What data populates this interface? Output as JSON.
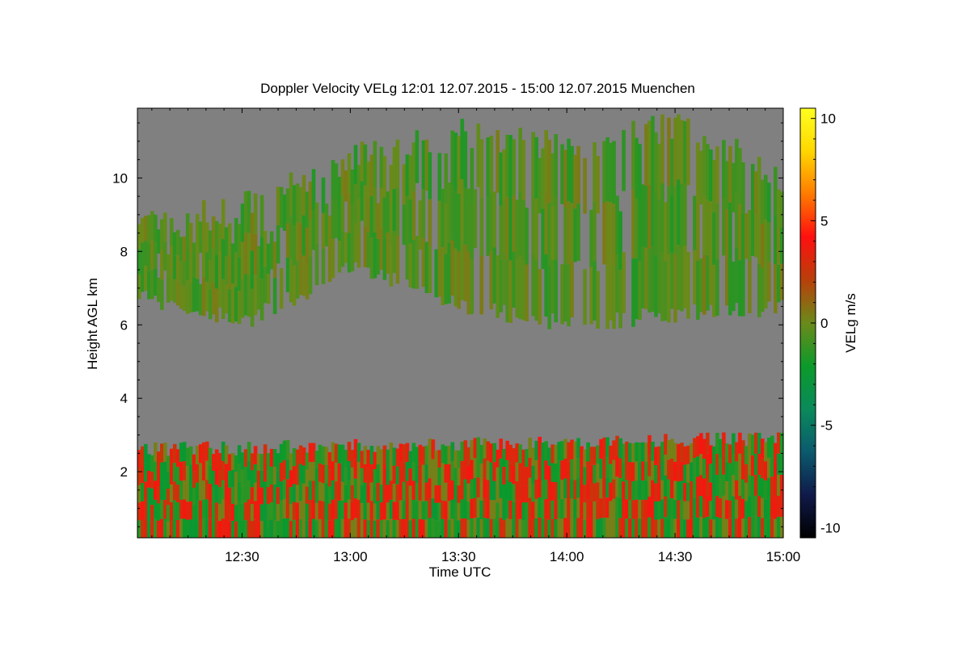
{
  "chart_data": {
    "type": "heatmap",
    "title": "Doppler Velocity VELg   12:01 12.07.2015 - 15:00 12.07.2015 Muenchen",
    "xlabel": "Time UTC",
    "ylabel": "Height AGL km",
    "colorbar_label": "VELg m/s",
    "x_tick_labels": [
      "12:30",
      "13:00",
      "13:30",
      "14:00",
      "14:30",
      "15:00"
    ],
    "x_tick_minutes": [
      30,
      60,
      90,
      120,
      150,
      180
    ],
    "xlim_minutes_after_12": [
      1,
      180
    ],
    "y_ticks": [
      2,
      4,
      6,
      8,
      10
    ],
    "ylim": [
      0.2,
      11.9
    ],
    "colorbar_ticks": [
      -10,
      -5,
      0,
      5,
      10
    ],
    "clim": [
      -10.5,
      10.5
    ],
    "colorscale": [
      "#000000",
      "#101a4a",
      "#0b5a6e",
      "#0a8a5a",
      "#0b9a2a",
      "#6b8a1a",
      "#b8400a",
      "#ff1010",
      "#ff7a00",
      "#ffd700",
      "#ffff20"
    ],
    "background_color": "#808080",
    "grid": false,
    "cloud_layers": [
      {
        "name": "upper cloud",
        "x_min": [
          1,
          180
        ],
        "bottom_km": [
          6.8,
          6.1,
          7.6,
          6.5,
          6.0,
          6.3,
          6.5
        ],
        "top_km": [
          8.6,
          9.2,
          10.5,
          11.2,
          10.8,
          11.4,
          10.0
        ],
        "mean_velocity_ms": -1.0
      },
      {
        "name": "boundary layer",
        "x_min": [
          1,
          180
        ],
        "bottom_km": [
          0.2,
          0.2
        ],
        "top_km": [
          2.6,
          2.9
        ],
        "mean_velocity_ms": 0.5
      }
    ]
  }
}
